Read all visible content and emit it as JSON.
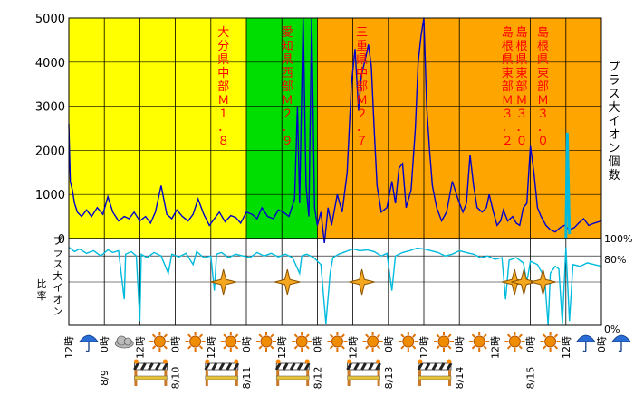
{
  "chart_data": {
    "type": "line",
    "x_start": "8/8 12時",
    "x_end": "8/15 24時",
    "date_labels": [
      "8/9",
      "8/10",
      "8/11",
      "8/12",
      "8/13",
      "8/14",
      "8/15"
    ],
    "tick_labels": [
      "12時",
      "0時",
      "12時",
      "0時",
      "12時",
      "0時",
      "12時",
      "0時",
      "12時",
      "0時",
      "12時",
      "0時",
      "12時",
      "0時",
      "12時",
      "0時"
    ],
    "top_axis": {
      "ylim": [
        0,
        5000
      ],
      "ticks": [
        0,
        1000,
        2000,
        3000,
        4000,
        5000
      ]
    },
    "bottom_axis": {
      "ticks": [
        "100%",
        "80%",
        "0%"
      ]
    },
    "right_label_top": "プラス大イオン個数",
    "left_label_bottom": "プラス大イオン比率",
    "background_bands": [
      {
        "from": 0.0,
        "to": 2.5,
        "color": "#ffff00"
      },
      {
        "from": 2.5,
        "to": 3.5,
        "color": "#00dd00"
      },
      {
        "from": 3.5,
        "to": 7.5,
        "color": "#ffa500"
      }
    ],
    "annotations": [
      {
        "text": "大分県中部Ｍ１．８",
        "day": 2.05
      },
      {
        "text": "愛知県西部Ｍ２．９",
        "day": 2.95
      },
      {
        "text": "三重県中部Ｍ２．７",
        "day": 4.0
      },
      {
        "text": "島根県東部Ｍ３．２",
        "day": 6.05
      },
      {
        "text": "島根県東部Ｍ３．０",
        "day": 6.25
      },
      {
        "text": "島根県東部Ｍ３．０",
        "day": 6.55
      }
    ],
    "series": [
      {
        "name": "プラス大イオン個数",
        "color": "#0000cc",
        "points": [
          [
            0.0,
            2600
          ],
          [
            0.02,
            1300
          ],
          [
            0.05,
            1100
          ],
          [
            0.08,
            800
          ],
          [
            0.12,
            600
          ],
          [
            0.18,
            500
          ],
          [
            0.25,
            650
          ],
          [
            0.32,
            500
          ],
          [
            0.4,
            700
          ],
          [
            0.48,
            550
          ],
          [
            0.55,
            950
          ],
          [
            0.62,
            600
          ],
          [
            0.7,
            400
          ],
          [
            0.78,
            500
          ],
          [
            0.85,
            450
          ],
          [
            0.92,
            600
          ],
          [
            1.0,
            400
          ],
          [
            1.08,
            500
          ],
          [
            1.15,
            350
          ],
          [
            1.22,
            600
          ],
          [
            1.3,
            1200
          ],
          [
            1.38,
            550
          ],
          [
            1.45,
            450
          ],
          [
            1.52,
            650
          ],
          [
            1.6,
            500
          ],
          [
            1.68,
            400
          ],
          [
            1.75,
            550
          ],
          [
            1.82,
            900
          ],
          [
            1.9,
            550
          ],
          [
            1.98,
            300
          ],
          [
            2.05,
            450
          ],
          [
            2.12,
            600
          ],
          [
            2.2,
            380
          ],
          [
            2.28,
            520
          ],
          [
            2.35,
            480
          ],
          [
            2.42,
            350
          ],
          [
            2.5,
            600
          ],
          [
            2.58,
            550
          ],
          [
            2.65,
            450
          ],
          [
            2.72,
            700
          ],
          [
            2.8,
            500
          ],
          [
            2.88,
            450
          ],
          [
            2.95,
            650
          ],
          [
            3.02,
            600
          ],
          [
            3.1,
            500
          ],
          [
            3.18,
            900
          ],
          [
            3.22,
            3000
          ],
          [
            3.25,
            800
          ],
          [
            3.3,
            5000
          ],
          [
            3.34,
            1200
          ],
          [
            3.38,
            500
          ],
          [
            3.42,
            5000
          ],
          [
            3.46,
            700
          ],
          [
            3.5,
            300
          ],
          [
            3.55,
            600
          ],
          [
            3.6,
            -100
          ],
          [
            3.65,
            700
          ],
          [
            3.7,
            300
          ],
          [
            3.78,
            1000
          ],
          [
            3.85,
            600
          ],
          [
            3.92,
            1500
          ],
          [
            3.98,
            3500
          ],
          [
            4.03,
            4300
          ],
          [
            4.08,
            2900
          ],
          [
            4.12,
            3700
          ],
          [
            4.18,
            4100
          ],
          [
            4.22,
            4400
          ],
          [
            4.26,
            3900
          ],
          [
            4.3,
            2500
          ],
          [
            4.34,
            1200
          ],
          [
            4.4,
            600
          ],
          [
            4.48,
            700
          ],
          [
            4.55,
            1300
          ],
          [
            4.6,
            800
          ],
          [
            4.65,
            1600
          ],
          [
            4.7,
            1700
          ],
          [
            4.75,
            700
          ],
          [
            4.82,
            1100
          ],
          [
            4.88,
            2500
          ],
          [
            4.92,
            4000
          ],
          [
            4.96,
            4600
          ],
          [
            5.0,
            5000
          ],
          [
            5.04,
            3000
          ],
          [
            5.08,
            2000
          ],
          [
            5.12,
            1200
          ],
          [
            5.18,
            700
          ],
          [
            5.25,
            400
          ],
          [
            5.32,
            600
          ],
          [
            5.4,
            1300
          ],
          [
            5.48,
            900
          ],
          [
            5.55,
            600
          ],
          [
            5.6,
            800
          ],
          [
            5.65,
            1900
          ],
          [
            5.7,
            1200
          ],
          [
            5.75,
            700
          ],
          [
            5.82,
            600
          ],
          [
            5.88,
            700
          ],
          [
            5.92,
            1000
          ],
          [
            5.98,
            600
          ],
          [
            6.03,
            300
          ],
          [
            6.08,
            400
          ],
          [
            6.12,
            650
          ],
          [
            6.18,
            400
          ],
          [
            6.25,
            500
          ],
          [
            6.3,
            350
          ],
          [
            6.35,
            300
          ],
          [
            6.4,
            700
          ],
          [
            6.45,
            800
          ],
          [
            6.5,
            2100
          ],
          [
            6.55,
            1500
          ],
          [
            6.6,
            700
          ],
          [
            6.65,
            500
          ],
          [
            6.72,
            300
          ],
          [
            6.78,
            200
          ],
          [
            6.85,
            150
          ],
          [
            6.92,
            250
          ],
          [
            6.98,
            300
          ],
          [
            7.05,
            200
          ],
          [
            7.12,
            250
          ],
          [
            7.18,
            350
          ],
          [
            7.25,
            450
          ],
          [
            7.32,
            300
          ],
          [
            7.4,
            350
          ],
          [
            7.5,
            400
          ]
        ]
      },
      {
        "name": "プラス大イオン比率",
        "color": "#00bbdd",
        "points": [
          [
            0.0,
            90
          ],
          [
            0.08,
            85
          ],
          [
            0.15,
            88
          ],
          [
            0.25,
            83
          ],
          [
            0.35,
            86
          ],
          [
            0.45,
            80
          ],
          [
            0.55,
            87
          ],
          [
            0.62,
            84
          ],
          [
            0.7,
            86
          ],
          [
            0.78,
            30
          ],
          [
            0.8,
            82
          ],
          [
            0.88,
            85
          ],
          [
            0.95,
            80
          ],
          [
            1.0,
            5
          ],
          [
            1.02,
            82
          ],
          [
            1.1,
            78
          ],
          [
            1.2,
            84
          ],
          [
            1.3,
            80
          ],
          [
            1.4,
            60
          ],
          [
            1.45,
            82
          ],
          [
            1.55,
            79
          ],
          [
            1.65,
            83
          ],
          [
            1.75,
            70
          ],
          [
            1.8,
            85
          ],
          [
            1.9,
            78
          ],
          [
            2.0,
            80
          ],
          [
            2.05,
            40
          ],
          [
            2.08,
            82
          ],
          [
            2.15,
            84
          ],
          [
            2.25,
            78
          ],
          [
            2.35,
            82
          ],
          [
            2.45,
            80
          ],
          [
            2.55,
            78
          ],
          [
            2.65,
            84
          ],
          [
            2.75,
            80
          ],
          [
            2.85,
            83
          ],
          [
            2.95,
            79
          ],
          [
            3.05,
            82
          ],
          [
            3.15,
            78
          ],
          [
            3.25,
            60
          ],
          [
            3.28,
            80
          ],
          [
            3.35,
            82
          ],
          [
            3.45,
            78
          ],
          [
            3.55,
            70
          ],
          [
            3.62,
            2
          ],
          [
            3.68,
            60
          ],
          [
            3.72,
            78
          ],
          [
            3.8,
            82
          ],
          [
            3.9,
            85
          ],
          [
            4.0,
            88
          ],
          [
            4.1,
            86
          ],
          [
            4.2,
            87
          ],
          [
            4.3,
            85
          ],
          [
            4.4,
            80
          ],
          [
            4.48,
            83
          ],
          [
            4.55,
            40
          ],
          [
            4.6,
            80
          ],
          [
            4.7,
            84
          ],
          [
            4.8,
            86
          ],
          [
            4.9,
            89
          ],
          [
            5.0,
            88
          ],
          [
            5.1,
            86
          ],
          [
            5.2,
            84
          ],
          [
            5.3,
            80
          ],
          [
            5.4,
            82
          ],
          [
            5.5,
            86
          ],
          [
            5.6,
            84
          ],
          [
            5.7,
            82
          ],
          [
            5.8,
            78
          ],
          [
            5.9,
            80
          ],
          [
            6.0,
            76
          ],
          [
            6.1,
            78
          ],
          [
            6.15,
            30
          ],
          [
            6.2,
            75
          ],
          [
            6.3,
            78
          ],
          [
            6.4,
            72
          ],
          [
            6.45,
            50
          ],
          [
            6.5,
            74
          ],
          [
            6.6,
            70
          ],
          [
            6.7,
            55
          ],
          [
            6.75,
            0
          ],
          [
            6.78,
            60
          ],
          [
            6.85,
            68
          ],
          [
            6.9,
            65
          ],
          [
            6.95,
            2
          ],
          [
            7.0,
            90
          ],
          [
            7.05,
            5
          ],
          [
            7.1,
            70
          ],
          [
            7.2,
            68
          ],
          [
            7.3,
            72
          ],
          [
            7.4,
            70
          ],
          [
            7.5,
            68
          ]
        ]
      }
    ],
    "sparkles_at_day": [
      2.05,
      2.95,
      4.0,
      6.15,
      6.28,
      6.55
    ],
    "weather_icons": [
      "umbrella-icon",
      "cloud-icon",
      "sun-icon",
      "sun-icon",
      "sun-icon",
      "sun-icon",
      "sun-icon",
      "sun-icon",
      "sun-icon",
      "sun-icon",
      "sun-icon",
      "sun-icon",
      "sun-icon",
      "sun-icon",
      "umbrella-icon",
      "umbrella-icon"
    ],
    "barrier_days": [
      1.0,
      2.0,
      3.0,
      4.0,
      5.0
    ]
  }
}
